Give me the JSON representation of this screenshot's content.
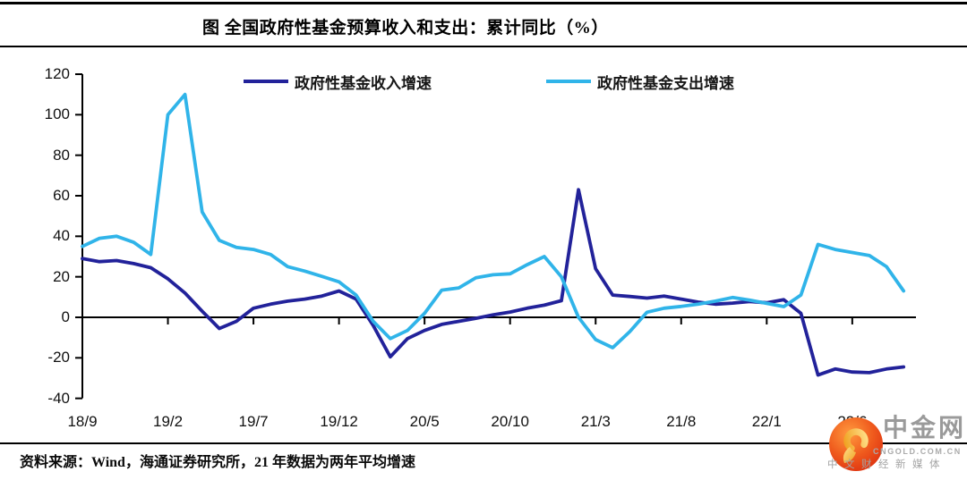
{
  "title": "图 全国政府性基金预算收入和支出：累计同比（%）",
  "source_note": "资料来源：Wind，海通证券研究所，21 年数据为两年平均增速",
  "legend": [
    {
      "label": "政府性基金收入增速"
    },
    {
      "label": "政府性基金支出增速"
    }
  ],
  "watermark": {
    "brand": "中金网",
    "domain": "CNGOLD.COM.CN",
    "tagline": "中文财经新媒体"
  },
  "colors": {
    "revenue_line": "#22229a",
    "expenditure_line": "#30b4e9",
    "axis": "#000000",
    "logo_red": "#e23912",
    "logo_gold": "#f6b93d",
    "watermark_gray": "#9a9a9a"
  },
  "chart_data": {
    "type": "line",
    "title": "图 全国政府性基金预算收入和支出：累计同比（%）",
    "ylabel": "",
    "xlabel": "",
    "ylim": [
      -40,
      120
    ],
    "ytick_interval": 20,
    "grid": false,
    "legend_position": "top",
    "y_tick_labels": [
      "120",
      "100",
      "80",
      "60",
      "40",
      "20",
      "0",
      "-20",
      "-40"
    ],
    "x_tick_labels": [
      "18/9",
      "19/2",
      "19/7",
      "19/12",
      "20/5",
      "20/10",
      "21/3",
      "21/8",
      "22/1",
      "22/6"
    ],
    "x_tick_every": 5,
    "x": [
      "18/9",
      "18/10",
      "18/11",
      "18/12",
      "19/1",
      "19/2",
      "19/3",
      "19/4",
      "19/5",
      "19/6",
      "19/7",
      "19/8",
      "19/9",
      "19/10",
      "19/11",
      "19/12",
      "20/1",
      "20/2",
      "20/3",
      "20/4",
      "20/5",
      "20/6",
      "20/7",
      "20/8",
      "20/9",
      "20/10",
      "20/11",
      "20/12",
      "21/1",
      "21/2",
      "21/3",
      "21/4",
      "21/5",
      "21/6",
      "21/7",
      "21/8",
      "21/9",
      "21/10",
      "21/11",
      "21/12",
      "22/1",
      "22/2",
      "22/3",
      "22/4",
      "22/5",
      "22/6",
      "22/7",
      "22/8",
      "22/9"
    ],
    "series": [
      {
        "name": "政府性基金收入增速",
        "color": "#22229a",
        "values": [
          29,
          27.5,
          28,
          26.5,
          24.5,
          19,
          12,
          3,
          -5.5,
          -2,
          4.5,
          6.5,
          8,
          9,
          10.5,
          13,
          9,
          -4,
          -19.5,
          -10.5,
          -6.5,
          -3.5,
          -2,
          -0.5,
          1.2,
          2.6,
          4.5,
          6,
          8.2,
          63,
          24,
          11,
          10.3,
          9.5,
          10.5,
          9,
          7.5,
          6.5,
          7,
          7.8,
          7.2,
          8.7,
          2,
          -28.5,
          -25.5,
          -27,
          -27.3,
          -25.5,
          -24.5
        ]
      },
      {
        "name": "政府性基金支出增速",
        "color": "#30b4e9",
        "values": [
          35,
          39,
          40,
          37,
          31,
          100,
          110,
          52,
          38,
          34.5,
          33.5,
          31,
          25,
          22.8,
          20.2,
          17.5,
          11,
          -2,
          -10.5,
          -6.5,
          2,
          13.4,
          14.5,
          19.5,
          21,
          21.5,
          26,
          30,
          20,
          0,
          -11,
          -15,
          -7,
          2.5,
          4.5,
          5.4,
          6.5,
          8,
          9.8,
          8.5,
          6.9,
          5.3,
          11,
          36,
          33.5,
          32,
          30.5,
          25,
          13
        ]
      }
    ]
  }
}
